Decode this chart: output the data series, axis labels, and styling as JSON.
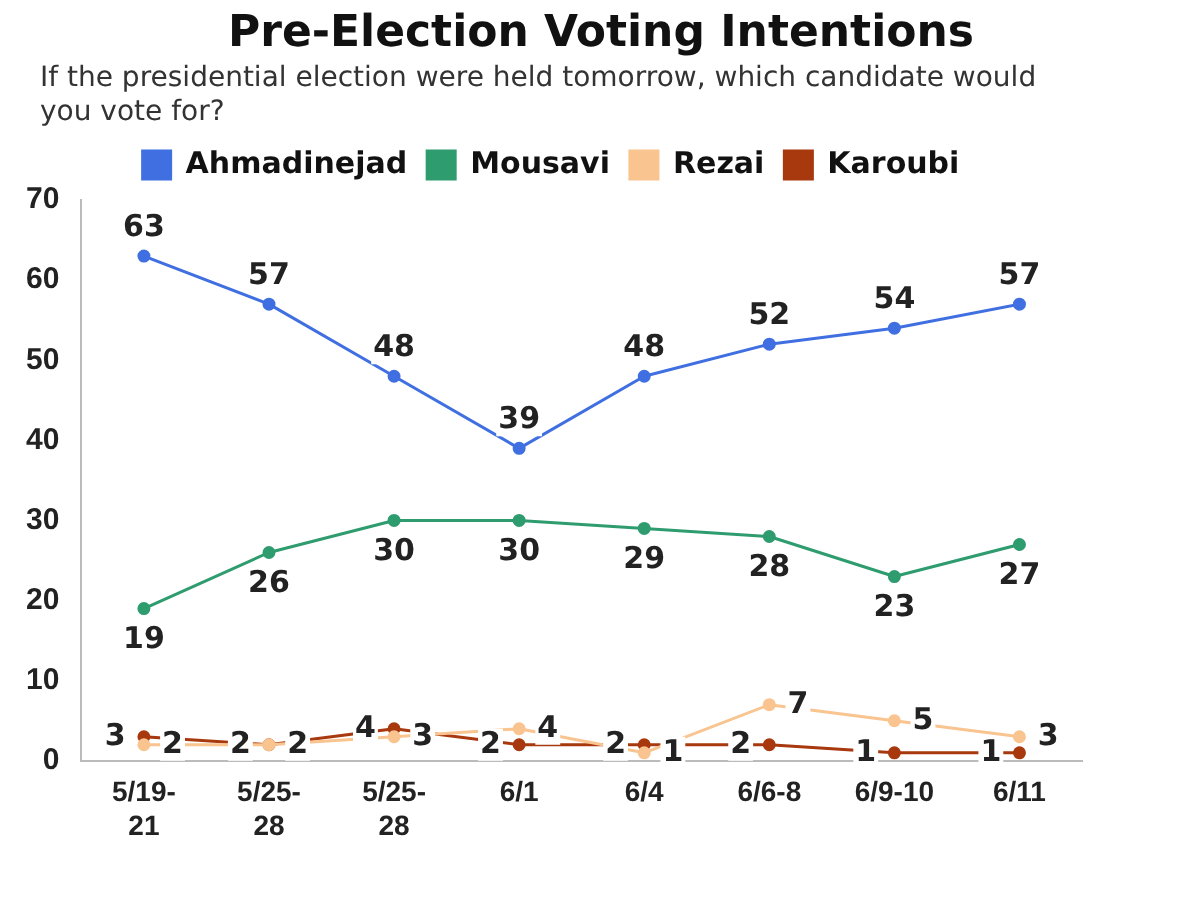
{
  "chart_data": {
    "type": "line",
    "title": "Pre-Election Voting Intentions",
    "subtitle": "If the presidential election were held tomorrow, which candidate would you vote for?",
    "categories": [
      "5/19-21",
      "5/25-28",
      "5/25-28",
      "6/1",
      "6/4",
      "6/6-8",
      "6/9-10",
      "6/11"
    ],
    "series": [
      {
        "name": "Ahmadinejad",
        "color": "#3f6fe0",
        "values": [
          63,
          57,
          48,
          39,
          48,
          52,
          54,
          57
        ]
      },
      {
        "name": "Mousavi",
        "color": "#2e9c6e",
        "values": [
          19,
          26,
          30,
          30,
          29,
          28,
          23,
          27
        ]
      },
      {
        "name": "Rezai",
        "color": "#f9c48f",
        "values": [
          2,
          2,
          3,
          4,
          1,
          7,
          5,
          3
        ]
      },
      {
        "name": "Karoubi",
        "color": "#a8380d",
        "values": [
          3,
          2,
          4,
          2,
          2,
          2,
          1,
          1
        ]
      }
    ],
    "ylim": [
      0,
      70
    ],
    "yticks": [
      0,
      10,
      20,
      30,
      40,
      50,
      60,
      70
    ],
    "grid": false,
    "legend": "top",
    "marker": "circle",
    "data_labels": true
  }
}
